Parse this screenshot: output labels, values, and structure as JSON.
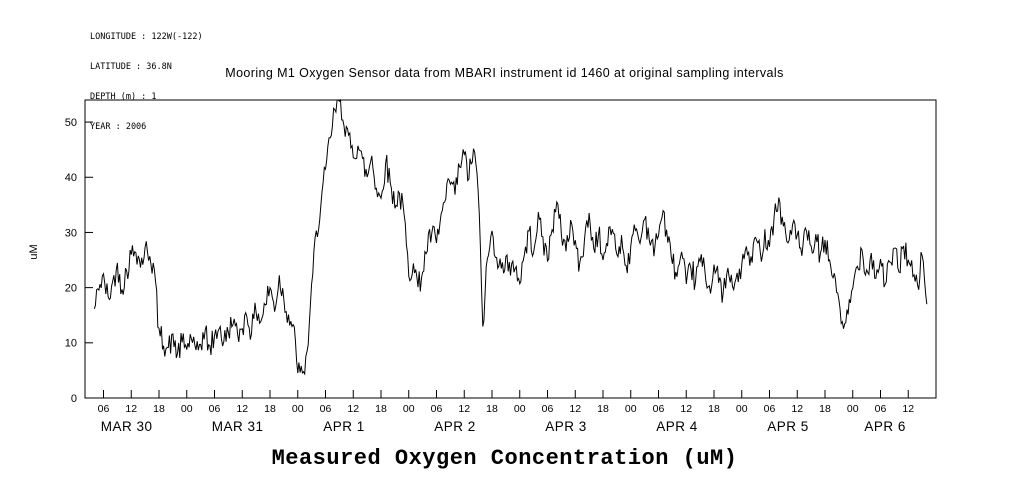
{
  "metadata": {
    "longitude": "LONGITUDE : 122W(-122)",
    "latitude": "LATITUDE : 36.8N",
    "depth": "DEPTH (m) : 1",
    "year": "YEAR : 2006"
  },
  "title": "Mooring M1 Oxygen Sensor data from MBARI instrument id 1460 at original sampling intervals",
  "bottom_label": "Measured Oxygen Concentration (uM)",
  "chart_data": {
    "type": "line",
    "title": "Mooring M1 Oxygen Sensor data from MBARI instrument id 1460 at original sampling intervals",
    "xlabel": "Measured Oxygen Concentration (uM)",
    "ylabel": "uM",
    "ylim": [
      0,
      54
    ],
    "y_ticks": [
      0,
      10,
      20,
      30,
      40,
      50
    ],
    "x_hours_range": [
      2,
      186
    ],
    "x_tick_hours": [
      6,
      12,
      18,
      24,
      30,
      36,
      42,
      48,
      54,
      60,
      66,
      72,
      78,
      84,
      90,
      96,
      102,
      108,
      114,
      120,
      126,
      132,
      138,
      144,
      150,
      156,
      162,
      168,
      174,
      180
    ],
    "x_tick_labels": [
      "06",
      "12",
      "18",
      "00",
      "06",
      "12",
      "18",
      "00",
      "06",
      "12",
      "18",
      "00",
      "06",
      "12",
      "18",
      "00",
      "06",
      "12",
      "18",
      "00",
      "06",
      "12",
      "18",
      "00",
      "06",
      "12",
      "18",
      "00",
      "06",
      "12"
    ],
    "day_labels": [
      {
        "label": "MAR 30",
        "hour": 11
      },
      {
        "label": "MAR 31",
        "hour": 35
      },
      {
        "label": "APR 1",
        "hour": 58
      },
      {
        "label": "APR 2",
        "hour": 82
      },
      {
        "label": "APR 3",
        "hour": 106
      },
      {
        "label": "APR 4",
        "hour": 130
      },
      {
        "label": "APR 5",
        "hour": 154
      },
      {
        "label": "APR 6",
        "hour": 175
      }
    ],
    "line_color": "#000000",
    "grid": false,
    "legend": "none",
    "x_start_hour": 4,
    "sample_interval_hours": 1,
    "noise_amplitude_uM": 2.3,
    "noise_seed": 42,
    "values": [
      16,
      20,
      22,
      18,
      21,
      24,
      20,
      23,
      26,
      27,
      24,
      27,
      26,
      23,
      12,
      10,
      9,
      11,
      8,
      10,
      9,
      11,
      8,
      10,
      12,
      9,
      11,
      13,
      10,
      12,
      14,
      11,
      13,
      15,
      12,
      16,
      14,
      17,
      20,
      16,
      22,
      18,
      15,
      13,
      5,
      4,
      8,
      20,
      30,
      35,
      41,
      47,
      52,
      54,
      50,
      47,
      44,
      46,
      43,
      40,
      44,
      38,
      36,
      43,
      39,
      35,
      37,
      33,
      22,
      25,
      20,
      23,
      27,
      30,
      28,
      33,
      36,
      39,
      37,
      42,
      44,
      40,
      45,
      38,
      13,
      25,
      30,
      26,
      23,
      26,
      22,
      24,
      21,
      26,
      30,
      27,
      33,
      29,
      25,
      31,
      35,
      30,
      27,
      32,
      28,
      24,
      29,
      33,
      27,
      30,
      25,
      28,
      31,
      26,
      29,
      24,
      27,
      31,
      28,
      33,
      29,
      26,
      30,
      34,
      28,
      25,
      22,
      26,
      20,
      24,
      21,
      25,
      23,
      20,
      24,
      21,
      19,
      23,
      20,
      22,
      24,
      27,
      25,
      29,
      26,
      30,
      28,
      33,
      36,
      31,
      28,
      32,
      29,
      26,
      30,
      27,
      29,
      26,
      28,
      25,
      22,
      18,
      12,
      15,
      20,
      24,
      27,
      23,
      26,
      22,
      25,
      21,
      24,
      27,
      23,
      28,
      25,
      22,
      20,
      26,
      17
    ]
  }
}
